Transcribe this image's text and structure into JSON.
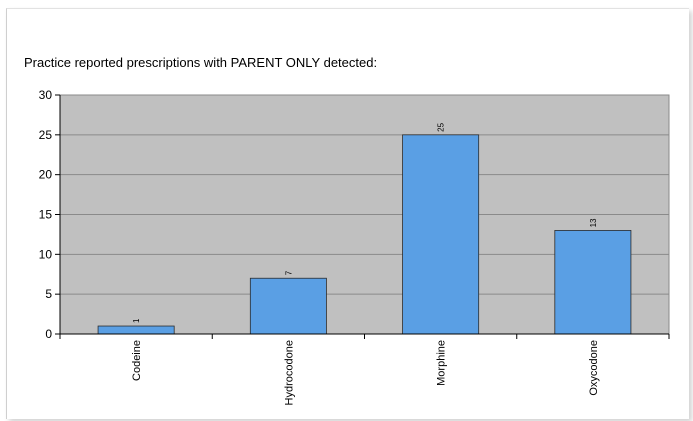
{
  "chart_data": {
    "type": "bar",
    "title": "Practice reported prescriptions with PARENT ONLY detected:",
    "categories": [
      "Codeine",
      "Hydrocodone",
      "Morphine",
      "Oxycodone"
    ],
    "values": [
      1,
      7,
      25,
      13
    ],
    "data_labels": [
      "1",
      "7",
      "25",
      "13"
    ],
    "xlabel": "",
    "ylabel": "",
    "ylim": [
      0,
      30
    ],
    "yticks": [
      0,
      5,
      10,
      15,
      20,
      25,
      30
    ],
    "grid": true,
    "legend": "none",
    "colors": {
      "bar_fill": "#5a9fe4",
      "bar_stroke": "#2b2b2b",
      "plot_background": "#c0c0c0",
      "gridline": "#8a8a8a"
    }
  }
}
